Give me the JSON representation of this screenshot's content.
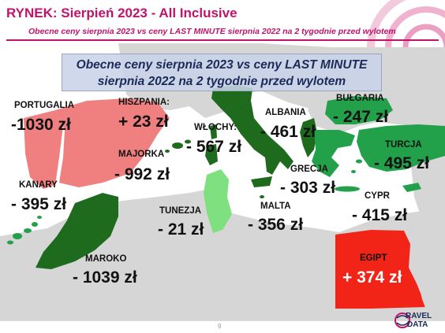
{
  "header": {
    "title": "RYNEK: Sierpień 2023 - All Inclusive",
    "subtitle": "Obecne ceny sierpnia 2023 vs ceny LAST MINUTE sierpnia 2022 na 2 tygodnie przed wylotem"
  },
  "banner": {
    "line1": "Obecne ceny sierpnia 2023 vs ceny LAST MINUTE",
    "line2": "sierpnia 2022 na 2 tygodnie przed wylotem"
  },
  "colors": {
    "brand": "#c0136b",
    "price_drop_strong": "#1e6b1e",
    "price_drop_mid": "#22a04a",
    "price_drop_light": "#7fe07f",
    "price_rise_strong": "#f22418",
    "price_rise_light": "#f08080",
    "land": "#d6d6d6",
    "sea": "#ffffff"
  },
  "destinations": [
    {
      "name": "PORTUGALIA",
      "change": "-1030 zł"
    },
    {
      "name": "HISZPANIA:",
      "change": "+ 23 zł"
    },
    {
      "name": "MAJORKA",
      "change": "- 992 zł"
    },
    {
      "name": "WŁOCHY:",
      "change": "- 567 zł"
    },
    {
      "name": "ALBANIA",
      "change": "- 461 zł"
    },
    {
      "name": "BUŁGARIA",
      "change": "- 247 zł"
    },
    {
      "name": "TURCJA",
      "change": "- 495 zł"
    },
    {
      "name": "GRECJA",
      "change": "- 303 zł"
    },
    {
      "name": "CYPR",
      "change": "- 415 zł"
    },
    {
      "name": "KANARY",
      "change": "- 395 zł"
    },
    {
      "name": "TUNEZJA",
      "change": "- 21 zł"
    },
    {
      "name": "MALTA",
      "change": "- 356 zł"
    },
    {
      "name": "MAROKO",
      "change": "- 1039 zł"
    },
    {
      "name": "EGIPT",
      "change": "+ 374 zł"
    }
  ],
  "footer": {
    "page_number": "9",
    "logo_line1": "RAVEL",
    "logo_line2": "DATA"
  }
}
